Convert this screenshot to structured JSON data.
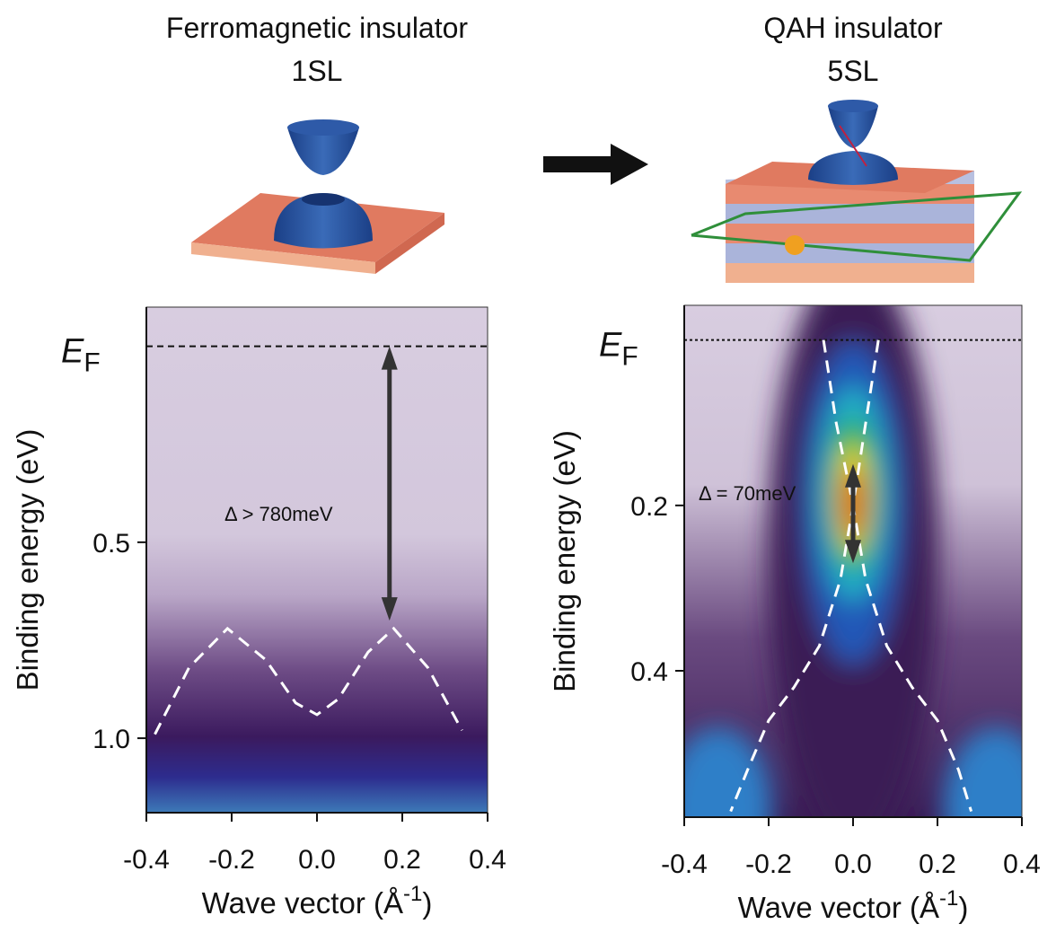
{
  "chart_data": [
    {
      "type": "arpes",
      "title": "Ferromagnetic insulator",
      "subtitle": "1SL",
      "xlabel": {
        "text": "Wave vector (Å",
        "sup": "-1",
        "end": ")"
      },
      "ylabel": "Binding energy (eV)",
      "ef_label": {
        "main": "E",
        "sub": "F"
      },
      "ef": 0,
      "xlim": [
        -0.4,
        0.4
      ],
      "xticks": [
        -0.4,
        -0.2,
        {
          "value": 0,
          "label": "0.0"
        },
        0.2,
        0.4
      ],
      "ylim": [
        -0.1,
        1.19
      ],
      "yticks": [
        0.5,
        {
          "value": 1,
          "label": "1.0"
        }
      ],
      "gap_label": "Δ > 780meV",
      "gap_arrow": {
        "x": 0.17,
        "y": [
          0,
          0.7
        ]
      },
      "dashed_curves": [
        {
          "x": [
            -0.38,
            -0.3,
            -0.21,
            -0.12,
            -0.05,
            0,
            0.05,
            0.12,
            0.18,
            0.26,
            0.34
          ],
          "y": [
            0.99,
            0.82,
            0.72,
            0.8,
            0.91,
            0.94,
            0.9,
            0.78,
            0.72,
            0.82,
            0.98
          ]
        }
      ]
    },
    {
      "type": "arpes",
      "title": "QAH insulator",
      "subtitle": "5SL",
      "xlabel": {
        "text": "Wave vector (Å",
        "sup": "-1",
        "end": ")"
      },
      "ylabel": "Binding energy (eV)",
      "ef_label": {
        "main": "E",
        "sub": "F"
      },
      "ef": 0,
      "xlim": [
        -0.4,
        0.4
      ],
      "xticks": [
        -0.4,
        -0.2,
        {
          "value": 0,
          "label": "0.0"
        },
        0.2,
        0.4
      ],
      "ylim": [
        -0.042,
        0.577
      ],
      "yticks": [
        0.2,
        0.4
      ],
      "gap_label": "Δ = 70meV",
      "gap_arrow": {
        "x": 0,
        "y": [
          0.15,
          0.27
        ]
      },
      "dashed_curves": [
        {
          "x": [
            -0.07,
            -0.04,
            0,
            0.03,
            0.08,
            0.14,
            0.2,
            0.25,
            0.28
          ],
          "y": [
            0,
            0.1,
            0.2,
            0.29,
            0.37,
            0.42,
            0.46,
            0.52,
            0.57
          ]
        },
        {
          "x": [
            0.06,
            0.03,
            0,
            -0.03,
            -0.08,
            -0.14,
            -0.2,
            -0.25,
            -0.29
          ],
          "y": [
            0,
            0.1,
            0.2,
            0.29,
            0.37,
            0.42,
            0.46,
            0.52,
            0.57
          ]
        }
      ]
    }
  ]
}
